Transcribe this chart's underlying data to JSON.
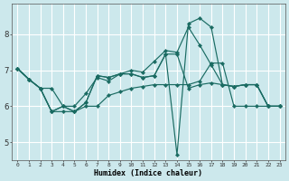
{
  "xlabel": "Humidex (Indice chaleur)",
  "ylabel": "",
  "background_color": "#cce8ec",
  "grid_color": "#ffffff",
  "line_color": "#1a6b62",
  "xlim": [
    -0.5,
    23.5
  ],
  "ylim": [
    4.5,
    8.85
  ],
  "xticks": [
    0,
    1,
    2,
    3,
    4,
    5,
    6,
    7,
    8,
    9,
    10,
    11,
    12,
    13,
    14,
    15,
    16,
    17,
    18,
    19,
    20,
    21,
    22,
    23
  ],
  "yticks": [
    5,
    6,
    7,
    8
  ],
  "series": [
    [
      7.05,
      6.75,
      6.5,
      5.85,
      5.85,
      5.85,
      6.0,
      6.0,
      6.3,
      6.4,
      6.5,
      6.55,
      6.6,
      6.6,
      6.6,
      6.6,
      6.7,
      7.2,
      7.2,
      6.0,
      6.0,
      6.0,
      6.0,
      6.0
    ],
    [
      7.05,
      6.75,
      6.5,
      6.5,
      6.0,
      6.0,
      6.35,
      6.8,
      6.7,
      6.9,
      7.0,
      6.95,
      7.25,
      7.55,
      7.5,
      8.2,
      7.7,
      7.15,
      6.6,
      6.55,
      6.6,
      6.6,
      6.0,
      6.0
    ],
    [
      7.05,
      6.75,
      6.5,
      5.85,
      6.0,
      5.85,
      6.1,
      6.85,
      6.8,
      6.9,
      6.9,
      6.8,
      6.85,
      7.45,
      7.45,
      6.5,
      6.6,
      6.65,
      6.6,
      6.55,
      6.6,
      6.6,
      6.0,
      6.0
    ],
    [
      7.05,
      6.75,
      6.5,
      5.85,
      6.0,
      5.85,
      6.1,
      6.85,
      6.8,
      6.9,
      6.9,
      6.8,
      6.85,
      7.45,
      4.65,
      8.3,
      8.45,
      8.2,
      6.6,
      6.55,
      6.6,
      6.6,
      6.0,
      6.0
    ]
  ]
}
